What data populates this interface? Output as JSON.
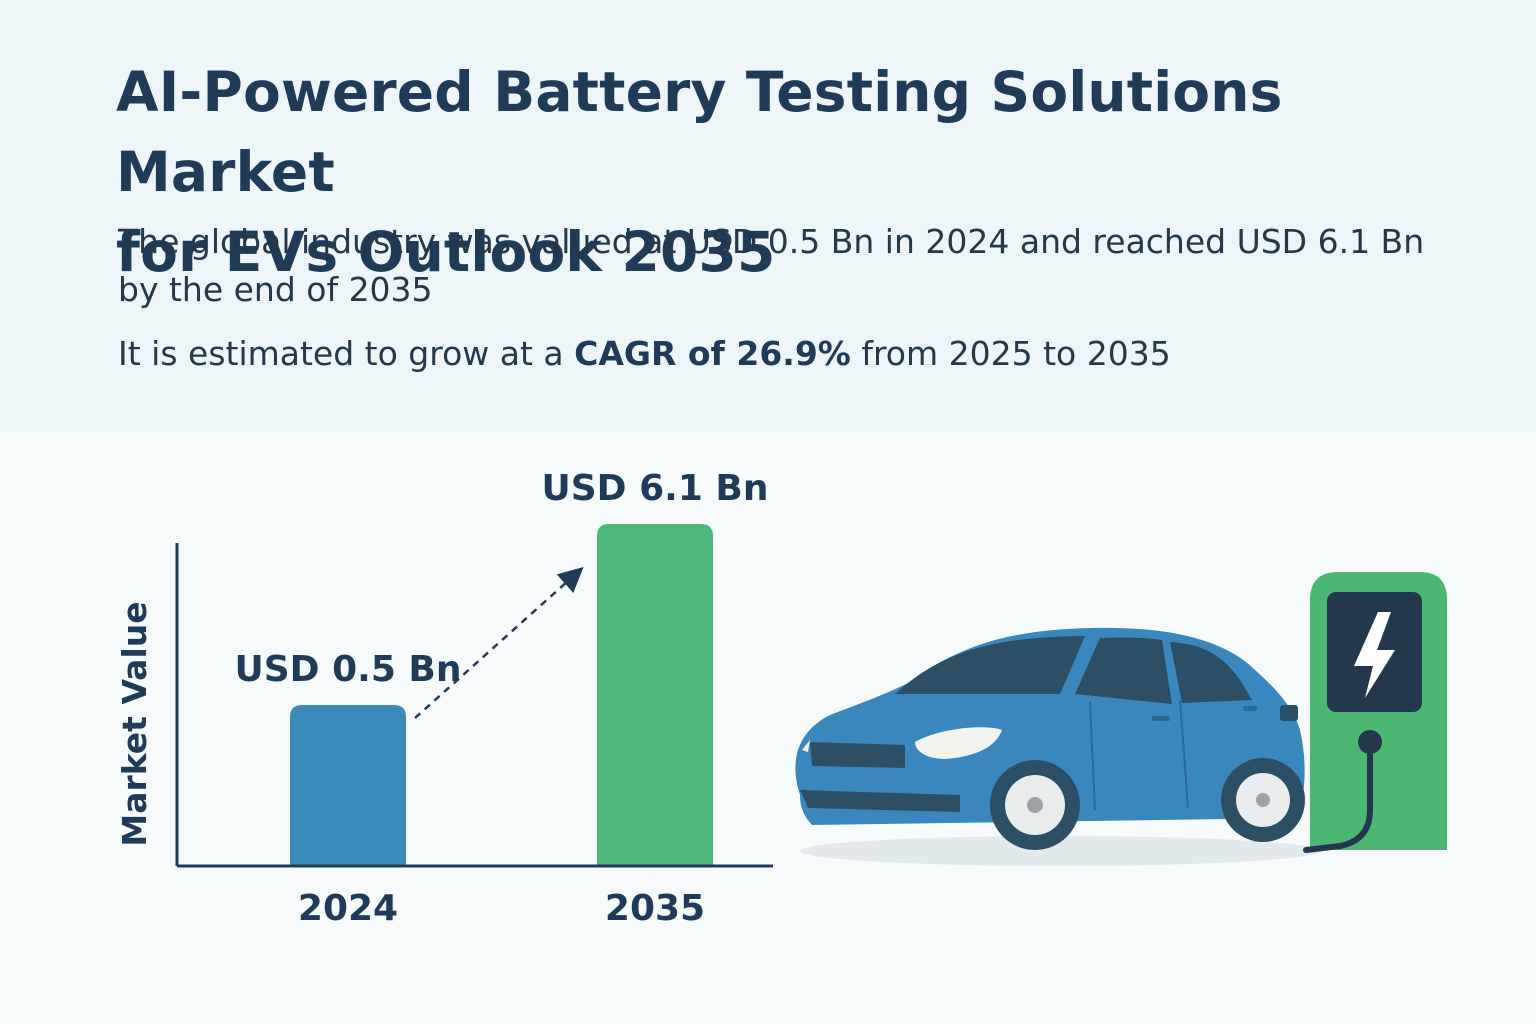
{
  "header": {
    "title_line1": "AI-Powered Battery Testing Solutions Market",
    "title_line2": "for EVs Outlook 2035",
    "subtitle_line1": "The global industry was valued at USD 0.5 Bn in 2024 and reached USD 6.1 Bn",
    "subtitle_line2": "by the end of 2035",
    "cagr_prefix": "It is estimated to grow at a ",
    "cagr_bold": "CAGR of 26.9%",
    "cagr_suffix": " from 2025 to 2035"
  },
  "chart_data": {
    "type": "bar",
    "categories": [
      "2024",
      "2035"
    ],
    "values": [
      0.5,
      6.1
    ],
    "data_labels": [
      "USD 0.5 Bn",
      "USD 6.1 Bn"
    ],
    "ylabel": "Market Value",
    "xlabel": "",
    "units": "USD Bn",
    "colors": [
      "#3a8bbb",
      "#4db67b"
    ],
    "grid": false,
    "legend": "none"
  },
  "illustration": {
    "car_icon": "ev-car-icon",
    "charger_icon": "charging-station-icon",
    "bolt_icon": "lightning-bolt-icon",
    "colors": {
      "car": "#3a87bd",
      "charger": "#4cb673",
      "screen": "#24384d"
    }
  }
}
